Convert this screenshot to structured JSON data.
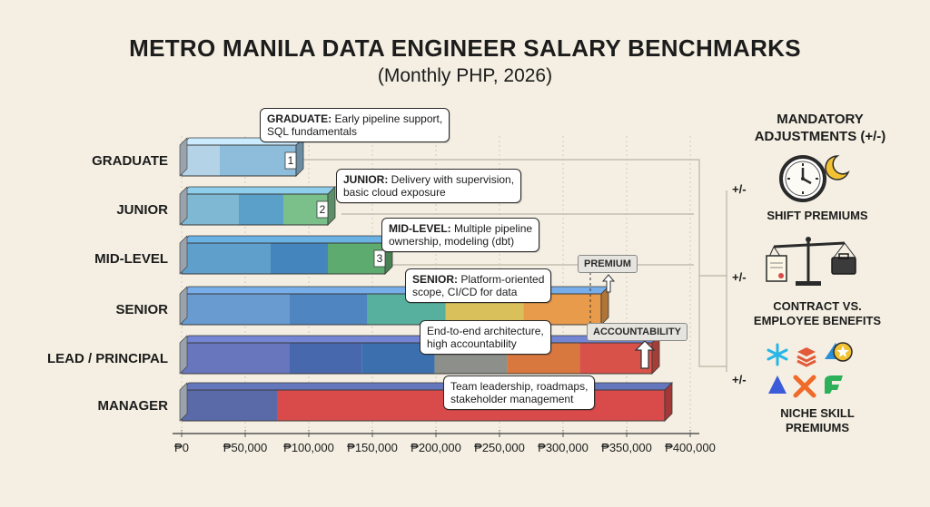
{
  "title": "METRO MANILA DATA ENGINEER SALARY BENCHMARKS",
  "subtitle": "(Monthly PHP, 2026)",
  "chart_data": {
    "type": "bar",
    "orientation": "horizontal",
    "title": "METRO MANILA DATA ENGINEER SALARY BENCHMARKS",
    "subtitle": "(Monthly PHP, 2026)",
    "categories": [
      "GRADUATE",
      "JUNIOR",
      "MID-LEVEL",
      "SENIOR",
      "LEAD / PRINCIPAL",
      "MANAGER"
    ],
    "ranges": [
      {
        "category": "GRADUATE",
        "low": 30000,
        "high": 90000,
        "step": "1"
      },
      {
        "category": "JUNIOR",
        "low": 45000,
        "high": 115000,
        "step": "2"
      },
      {
        "category": "MID-LEVEL",
        "low": 70000,
        "high": 160000,
        "step": "3"
      },
      {
        "category": "SENIOR",
        "low": 85000,
        "high": 330000,
        "step": ""
      },
      {
        "category": "LEAD / PRINCIPAL",
        "low": 85000,
        "high": 370000,
        "step": ""
      },
      {
        "category": "MANAGER",
        "low": 75000,
        "high": 380000,
        "step": ""
      }
    ],
    "x_ticks": [
      "₱0",
      "₱50,000",
      "₱100,000",
      "₱150,000",
      "₱200,000",
      "₱250,000",
      "₱300,000",
      "₱350,000",
      "₱400,000"
    ],
    "xlim": [
      0,
      400000
    ],
    "colors": {
      "GRADUATE": [
        "#b5d3e6",
        "#8ebcdb"
      ],
      "JUNIOR": [
        "#7fb8d2",
        "#5aa0c8",
        "#7bbf8a"
      ],
      "MID-LEVEL": [
        "#5f9fcc",
        "#4585bd",
        "#5dab6e"
      ],
      "SENIOR": [
        "#6a9bd0",
        "#4f86c2",
        "#57b09e",
        "#d9c05a",
        "#e89b4a"
      ],
      "LEAD / PRINCIPAL": [
        "#6877bd",
        "#4868ad",
        "#3c6fae",
        "#8c8f8a",
        "#d9783e",
        "#d9524a"
      ],
      "MANAGER": [
        "#5a6aa8",
        "#d94b4b"
      ]
    }
  },
  "callouts": [
    {
      "bold": "GRADUATE:",
      "text": " Early pipeline support,",
      "line2": "SQL fundamentals"
    },
    {
      "bold": "JUNIOR:",
      "text": " Delivery with supervision,",
      "line2": "basic cloud exposure"
    },
    {
      "bold": "MID-LEVEL:",
      "text": " Multiple pipeline",
      "line2": "ownership, modeling (dbt)"
    },
    {
      "bold": "SENIOR:",
      "text": " Platform-oriented",
      "line2": "scope, CI/CD for data"
    },
    {
      "bold": "",
      "text": "End-to-end architecture,",
      "line2": "high accountability"
    },
    {
      "bold": "",
      "text": "Team leadership, roadmaps,",
      "line2": "stakeholder management"
    }
  ],
  "tags": {
    "premium": "PREMIUM",
    "accountability": "ACCOUNTABILITY"
  },
  "adjustments": {
    "title_line1": "MANDATORY",
    "title_line2": "ADJUSTMENTS (+/-)",
    "pm": "+/-",
    "items": [
      {
        "label": "SHIFT PREMIUMS",
        "icon": "clock-moon-icon"
      },
      {
        "label_line1": "CONTRACT VS.",
        "label_line2": "EMPLOYEE BENEFITS",
        "icon": "scales-icon"
      },
      {
        "label_line1": "NICHE SKILL",
        "label_line2": "PREMIUMS",
        "icon": "tech-logos-icon"
      }
    ]
  }
}
